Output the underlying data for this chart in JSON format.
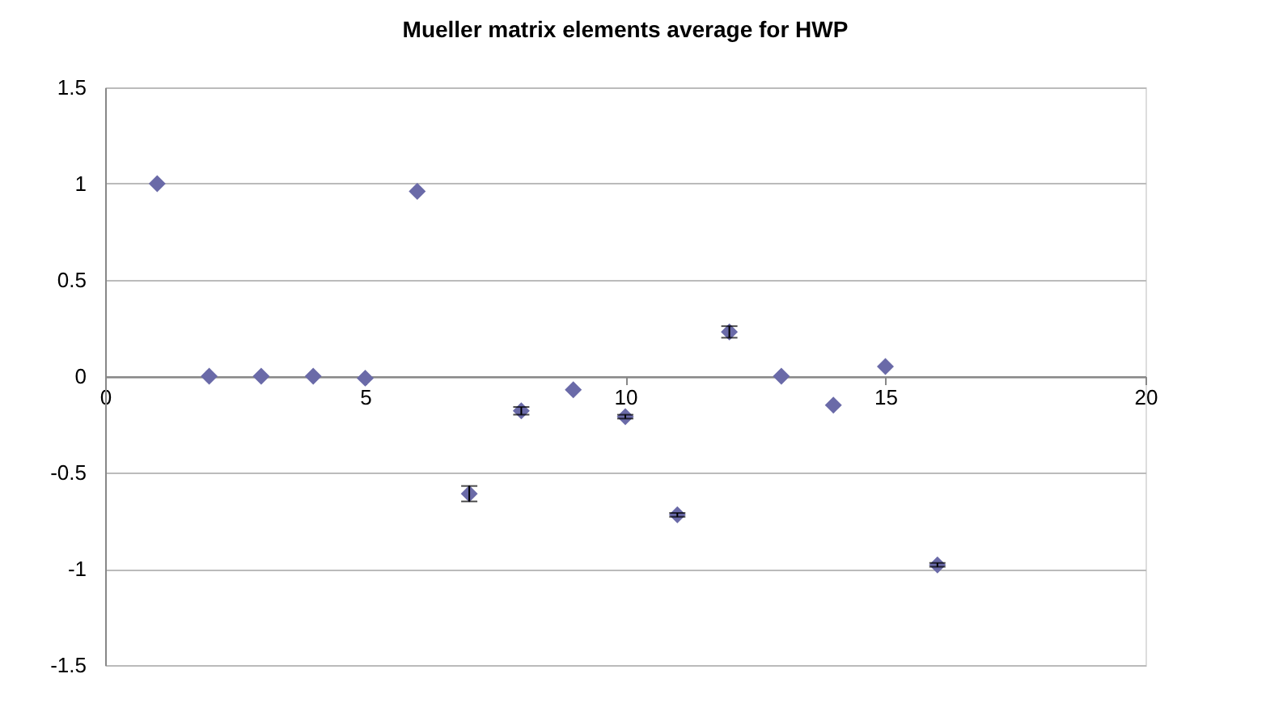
{
  "chart_data": {
    "type": "scatter",
    "title": "Mueller matrix elements average for HWP",
    "x": [
      1,
      2,
      3,
      4,
      5,
      6,
      7,
      8,
      9,
      10,
      11,
      12,
      13,
      14,
      15,
      16
    ],
    "series": [
      {
        "color": "#6a6aa8",
        "values": [
          1.0,
          0.0,
          0.0,
          0.0,
          -0.01,
          0.96,
          -0.61,
          -0.18,
          -0.07,
          -0.21,
          -0.72,
          0.23,
          0.0,
          -0.15,
          0.05,
          -0.98
        ],
        "errors": [
          null,
          null,
          null,
          null,
          null,
          null,
          0.04,
          0.02,
          null,
          0.01,
          0.01,
          0.03,
          null,
          null,
          null,
          0.01
        ]
      }
    ],
    "xlim": [
      0,
      20
    ],
    "xticks": [
      0,
      5,
      10,
      15,
      20
    ],
    "ylim": [
      -1.5,
      1.5
    ],
    "yticks": [
      -1.5,
      -1,
      -0.5,
      0,
      0.5,
      1,
      1.5
    ],
    "grid": "y",
    "marker": "diamond"
  }
}
